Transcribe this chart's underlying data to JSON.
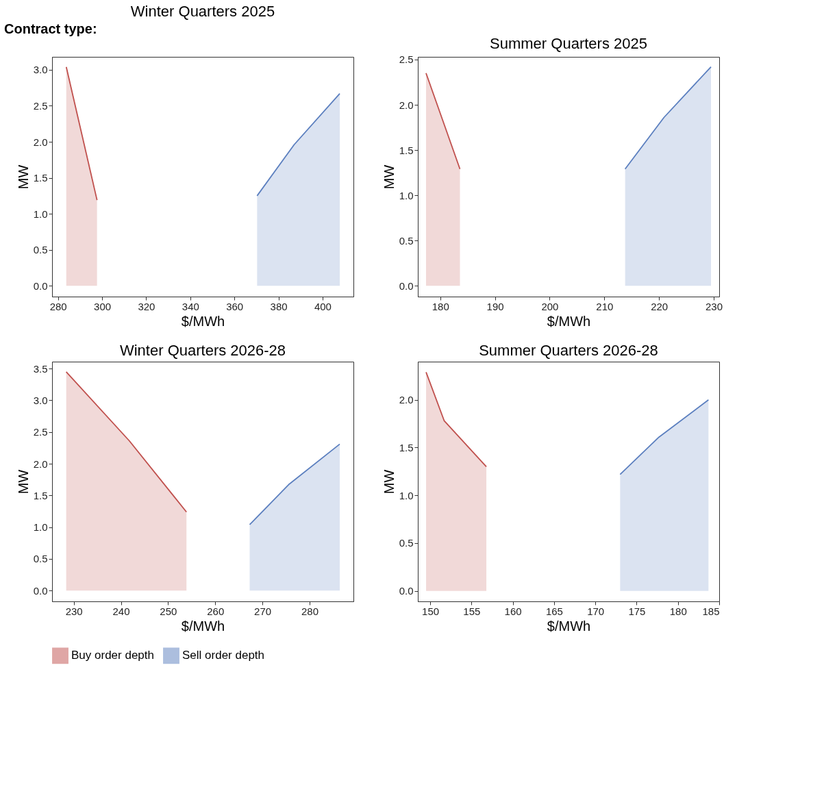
{
  "chart_data": [
    {
      "type": "area",
      "title": "Winter Quarters 2025",
      "xlabel": "$/MWh",
      "ylabel": "MW",
      "annotations": [
        "Contract type:"
      ],
      "xlim": [
        277.3,
        414
      ],
      "xticks": [
        280,
        300,
        320,
        340,
        360,
        380,
        400
      ],
      "ylim": [
        -0.15,
        3.18
      ],
      "yticks": [
        {
          "value": 0,
          "label": "0.0"
        },
        {
          "value": 0.5,
          "label": "0.5"
        },
        {
          "value": 1,
          "label": "1.0"
        },
        {
          "value": 1.5,
          "label": "1.5"
        },
        {
          "value": 2,
          "label": "2.0"
        },
        {
          "value": 2.5,
          "label": "2.5"
        },
        {
          "value": 3,
          "label": "3.0"
        }
      ],
      "grid": false,
      "legend": false,
      "series": [
        {
          "color": "#c0504d",
          "x": [
            283.75,
            297.7
          ],
          "values": [
            3.04,
            1.19
          ]
        },
        {
          "color": "#5b7fbf",
          "x": [
            370.3,
            387.1,
            407.8
          ],
          "values": [
            1.25,
            1.96,
            2.67
          ]
        }
      ]
    },
    {
      "type": "area",
      "title": "Summer Quarters 2025",
      "xlabel": "$/MWh",
      "ylabel": "MW",
      "xlim": [
        175.9,
        231
      ],
      "xticks": [
        180,
        190,
        200,
        210,
        220,
        230
      ],
      "ylim": [
        -0.12,
        2.53
      ],
      "yticks": [
        {
          "value": 0,
          "label": "0.0"
        },
        {
          "value": 0.5,
          "label": "0.5"
        },
        {
          "value": 1,
          "label": "1.0"
        },
        {
          "value": 1.5,
          "label": "1.5"
        },
        {
          "value": 2,
          "label": "2.0"
        },
        {
          "value": 2.5,
          "label": "2.5"
        }
      ],
      "grid": false,
      "legend": false,
      "series": [
        {
          "color": "#c0504d",
          "x": [
            177.4,
            183.6
          ],
          "values": [
            2.35,
            1.29
          ]
        },
        {
          "color": "#5b7fbf",
          "x": [
            213.8,
            220.9,
            229.5
          ],
          "values": [
            1.29,
            1.86,
            2.42
          ]
        }
      ]
    },
    {
      "type": "area",
      "title": "Winter Quarters 2026-28",
      "xlabel": "$/MWh",
      "ylabel": "MW",
      "xlim": [
        225.4,
        289.3
      ],
      "xticks": [
        230,
        240,
        250,
        260,
        270,
        280
      ],
      "ylim": [
        -0.17,
        3.61
      ],
      "yticks": [
        {
          "value": 0,
          "label": "0.0"
        },
        {
          "value": 0.5,
          "label": "0.5"
        },
        {
          "value": 1,
          "label": "1.0"
        },
        {
          "value": 1.5,
          "label": "1.5"
        },
        {
          "value": 2,
          "label": "2.0"
        },
        {
          "value": 2.5,
          "label": "2.5"
        },
        {
          "value": 3,
          "label": "3.0"
        },
        {
          "value": 3.5,
          "label": "3.5"
        }
      ],
      "grid": false,
      "legend": "bottom",
      "series": [
        {
          "name": "Buy order depth",
          "color": "#c0504d",
          "x": [
            228.4,
            241.8,
            253.9
          ],
          "values": [
            3.45,
            2.36,
            1.24
          ]
        },
        {
          "name": "Sell order depth",
          "color": "#5b7fbf",
          "x": [
            267.3,
            275.7,
            286.4
          ],
          "values": [
            1.04,
            1.68,
            2.31
          ]
        }
      ]
    },
    {
      "type": "area",
      "title": "Summer Quarters 2026-28",
      "xlabel": "$/MWh",
      "ylabel": "MW",
      "xlim": [
        148.5,
        185.0
      ],
      "xticks": [
        150,
        155,
        160,
        165,
        170,
        175,
        180,
        185
      ],
      "ylim": [
        -0.11,
        2.4
      ],
      "yticks": [
        {
          "value": 0,
          "label": "0.0"
        },
        {
          "value": 0.5,
          "label": "0.5"
        },
        {
          "value": 1,
          "label": "1.0"
        },
        {
          "value": 1.5,
          "label": "1.5"
        },
        {
          "value": 2,
          "label": "2.0"
        }
      ],
      "grid": false,
      "legend": false,
      "series": [
        {
          "color": "#c0504d",
          "x": [
            149.5,
            151.7,
            156.8
          ],
          "values": [
            2.29,
            1.78,
            1.3
          ]
        },
        {
          "color": "#5b7fbf",
          "x": [
            173.0,
            177.7,
            183.7
          ],
          "values": [
            1.22,
            1.61,
            2.0
          ]
        }
      ]
    }
  ]
}
